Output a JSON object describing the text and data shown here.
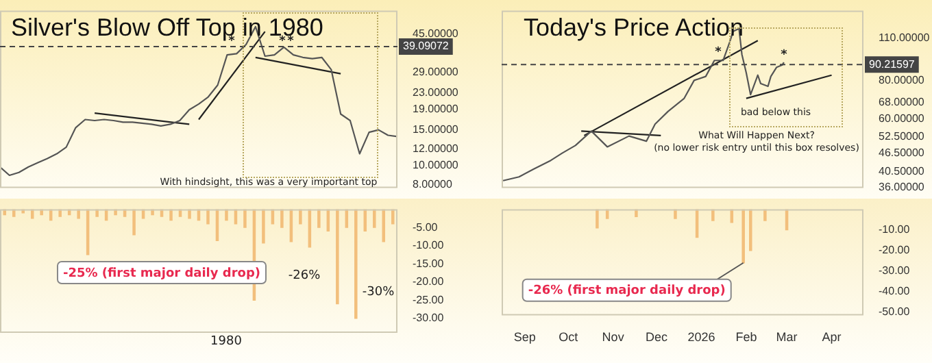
{
  "chart_data": [
    {
      "type": "line",
      "title": "Silver's Blow Off Top in 1980",
      "categories": [
        null,
        null,
        null,
        null,
        null,
        null,
        null,
        null,
        null,
        null,
        null,
        null,
        null,
        null,
        null,
        null,
        null,
        null,
        null,
        null,
        null,
        null,
        null,
        null,
        null,
        null,
        null,
        null,
        null,
        null,
        null,
        null,
        null,
        null,
        null,
        null,
        null,
        null,
        null,
        null,
        null,
        null,
        null
      ],
      "series": [
        {
          "color": "#555555",
          "values": [
            9.8,
            8.9,
            9.2,
            9.8,
            10.3,
            10.8,
            11.4,
            12.3,
            15.4,
            16.9,
            16.7,
            16.9,
            16.7,
            16.4,
            16.4,
            16.2,
            16.0,
            15.7,
            16.0,
            16.7,
            18.9,
            20.2,
            21.9,
            25.1,
            35.5,
            36.0,
            40.0,
            49.1,
            35.0,
            35.5,
            38.8,
            35.5,
            34.5,
            34.0,
            34.5,
            30.0,
            18.0,
            16.7,
            11.4,
            14.6,
            15.0,
            14.1,
            13.9
          ]
        },
        {
          "color": "#222222",
          "values": [
            null,
            null,
            null,
            null,
            null,
            null,
            null,
            null,
            null,
            null,
            18.2,
            null,
            null,
            null,
            null,
            null,
            null,
            null,
            null,
            null,
            16.0,
            null,
            null,
            null,
            null,
            null,
            null,
            null,
            null,
            null,
            null,
            null,
            null,
            null,
            null,
            null,
            null,
            null,
            null,
            null,
            null,
            null,
            null
          ]
        },
        {
          "color": "#222222",
          "values": [
            null,
            null,
            null,
            null,
            null,
            null,
            null,
            null,
            null,
            null,
            null,
            null,
            null,
            null,
            null,
            null,
            null,
            null,
            null,
            null,
            null,
            16.9,
            null,
            null,
            null,
            null,
            null,
            null,
            46.4,
            null,
            null,
            null,
            null,
            null,
            null,
            null,
            null,
            null,
            null,
            null,
            null,
            null,
            null
          ]
        },
        {
          "color": "#222222",
          "values": [
            null,
            null,
            null,
            null,
            null,
            null,
            null,
            null,
            null,
            null,
            null,
            null,
            null,
            null,
            null,
            null,
            null,
            null,
            null,
            null,
            null,
            null,
            null,
            null,
            null,
            null,
            null,
            34.5,
            null,
            null,
            null,
            null,
            null,
            null,
            null,
            null,
            28.6,
            null,
            null,
            null,
            null,
            null,
            null
          ]
        }
      ],
      "log": "y",
      "ylim": [
        7.7,
        59
      ],
      "yticks": [
        {
          "value": 8,
          "label": "8.00000"
        },
        {
          "value": 10,
          "label": "10.00000"
        },
        {
          "value": 12,
          "label": "12.00000"
        },
        {
          "value": 15,
          "label": "15.00000"
        },
        {
          "value": 19,
          "label": "19.00000"
        },
        {
          "value": 23,
          "label": "23.00000"
        },
        {
          "value": 29,
          "label": "29.00000"
        },
        {
          "value": 45,
          "label": "45.00000"
        }
      ],
      "ref_lines": [
        {
          "axis": "y",
          "value": 39.09072,
          "label": "39.09072",
          "line_style": "dashed",
          "color": "#444444"
        }
      ],
      "annotations": [
        "With hindsight, this was a very important top",
        "*",
        "*",
        "*"
      ],
      "tick_labels": "y"
    },
    {
      "type": "line",
      "title": "Today's Price Action",
      "xlim": [
        "2025-08-16",
        "2026-04-23"
      ],
      "series": [
        {
          "color": "#555555",
          "x": [
            "2025-08-17",
            "2025-08-28",
            "2025-09-07",
            "2025-09-19",
            "2025-09-27",
            "2025-10-06",
            "2025-10-17",
            "2025-10-28",
            "2025-11-12",
            "2025-11-24",
            "2025-11-30",
            "2025-12-09",
            "2025-12-20",
            "2025-12-27",
            "2026-01-04",
            "2026-01-10",
            "2026-01-16",
            "2026-01-20",
            "2026-01-23",
            "2026-01-27",
            "2026-01-29",
            "2026-02-01",
            "2026-02-04",
            "2026-02-09",
            "2026-02-11",
            "2026-02-16",
            "2026-02-18",
            "2026-02-22",
            "2026-02-26",
            "2026-02-27"
          ],
          "values": [
            37.8,
            38.9,
            41.2,
            44.0,
            46.5,
            49.2,
            54.8,
            48.7,
            52.8,
            50.8,
            57.7,
            63.5,
            69.9,
            80.1,
            82.5,
            93.0,
            93.0,
            104.8,
            115.7,
            118.1,
            97.3,
            84.8,
            72.0,
            83.3,
            78.2,
            76.6,
            82.5,
            88.4,
            90.0,
            91.7
          ]
        },
        {
          "type": "line",
          "color": "#222222",
          "x": [
            "2025-10-12",
            "2026-02-09"
          ],
          "values": [
            53.0,
            107.9
          ]
        },
        {
          "type": "line",
          "color": "#222222",
          "x": [
            "2025-10-10",
            "2025-12-04"
          ],
          "values": [
            54.8,
            53.0
          ]
        },
        {
          "type": "line",
          "color": "#222222",
          "x": [
            "2026-02-01",
            "2026-04-01"
          ],
          "values": [
            70.0,
            83.3
          ]
        }
      ],
      "log": "y",
      "ylim": [
        35.8,
        135
      ],
      "yticks": [
        {
          "value": 36,
          "label": "36.00000"
        },
        {
          "value": 40.5,
          "label": "40.50000"
        },
        {
          "value": 46.5,
          "label": "46.50000"
        },
        {
          "value": 52.5,
          "label": "52.50000"
        },
        {
          "value": 60,
          "label": "60.00000"
        },
        {
          "value": 68,
          "label": "68.00000"
        },
        {
          "value": 80,
          "label": "80.00000"
        },
        {
          "value": 110,
          "label": "110.00000"
        }
      ],
      "ref_lines": [
        {
          "axis": "y",
          "value": 90.21597,
          "label": "90.21597",
          "line_style": "dashed",
          "color": "#444444"
        }
      ],
      "annotations": [
        "What Will Happen Next?",
        "(no lower risk entry until this box resolves)",
        "bad below this",
        "*",
        "*"
      ],
      "tick_labels": "y"
    },
    {
      "type": "bar",
      "categories": [
        null,
        null,
        null,
        null,
        null,
        null,
        null,
        null,
        null,
        null,
        null,
        null,
        null,
        null,
        null,
        null,
        null,
        null,
        null,
        null,
        null,
        null,
        null,
        null,
        null,
        null,
        null,
        null,
        null,
        null,
        null,
        null,
        null,
        null,
        null,
        null,
        null,
        null,
        null,
        null,
        null,
        null,
        null
      ],
      "values": [
        -1.5,
        -2,
        -1,
        -2.5,
        -1.5,
        -3,
        -2,
        -1.5,
        -2.5,
        -12.5,
        -2,
        -3,
        -1.5,
        -2,
        -7,
        -2.5,
        -1.5,
        -2,
        -3,
        -2,
        -2.5,
        -3,
        -4,
        -8.6,
        -3,
        -4,
        -5,
        -25,
        -9.3,
        -4,
        -5,
        -8.9,
        -4,
        -10.4,
        -5,
        -6,
        -26,
        -5,
        -30,
        -6,
        -5,
        -8.9,
        -4
      ],
      "color": "#f2bf7c",
      "ylim": [
        -34,
        0
      ],
      "yticks": [
        {
          "value": -5,
          "label": "-5.00"
        },
        {
          "value": -10,
          "label": "-10.00"
        },
        {
          "value": -15,
          "label": "-15.00"
        },
        {
          "value": -20,
          "label": "-20.00"
        },
        {
          "value": -25,
          "label": "-25.00"
        },
        {
          "value": -30,
          "label": "-30.00"
        }
      ],
      "annotations": [
        "-25% (first major daily drop)",
        "-26%",
        "-30%",
        "1980"
      ],
      "tick_labels": "y"
    },
    {
      "type": "bar",
      "x": [
        "2025-10-21",
        "2025-10-28",
        "2025-11-17",
        "2025-12-14",
        "2025-12-29",
        "2026-01-09",
        "2026-01-22",
        "2026-01-30",
        "2026-02-04",
        "2026-02-14",
        "2026-03-01"
      ],
      "values": [
        -9.1,
        -4.5,
        -3.6,
        -4.5,
        -13.6,
        -5.5,
        -6.4,
        -26,
        -20,
        -5.5,
        -10
      ],
      "color": "#f2bf7c",
      "xlim": [
        "2025-08-16",
        "2026-04-23"
      ],
      "xticks": [
        {
          "value": "2025-09-01",
          "label": "Sep"
        },
        {
          "value": "2025-10-01",
          "label": "Oct"
        },
        {
          "value": "2025-11-01",
          "label": "Nov"
        },
        {
          "value": "2025-12-01",
          "label": "Dec"
        },
        {
          "value": "2026-01-01",
          "label": "2026"
        },
        {
          "value": "2026-02-01",
          "label": "Feb"
        },
        {
          "value": "2026-03-01",
          "label": "Mar"
        },
        {
          "value": "2026-04-01",
          "label": "Apr"
        }
      ],
      "ylim": [
        -51.5,
        0
      ],
      "yticks": [
        {
          "value": -10,
          "label": "-10.00"
        },
        {
          "value": -20,
          "label": "-20.00"
        },
        {
          "value": -30,
          "label": "-30.00"
        },
        {
          "value": -40,
          "label": "-40.00"
        },
        {
          "value": -50,
          "label": "-50.00"
        }
      ],
      "annotations": [
        {
          "text": "-26% (first major daily drop)",
          "x": "2026-01-30",
          "y": -26
        }
      ]
    }
  ]
}
